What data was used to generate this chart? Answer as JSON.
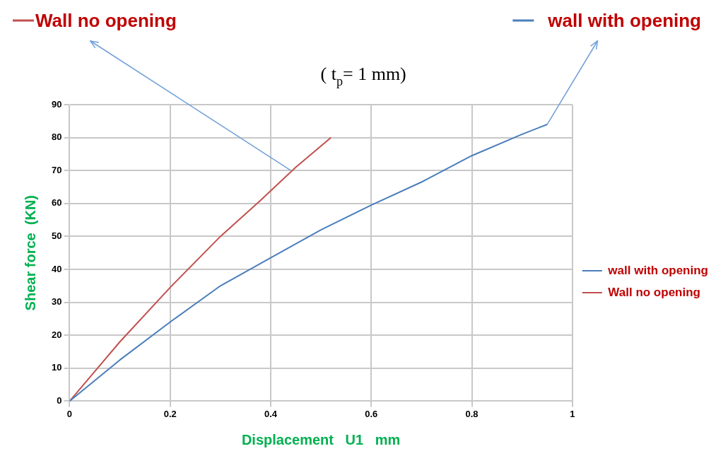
{
  "chart_data": {
    "type": "line",
    "xlabel": "Displacement   U1   mm",
    "ylabel": "Shear force  (KN)",
    "xlim": [
      0,
      1
    ],
    "xticks": [
      0,
      0.2,
      0.4,
      0.6,
      0.8,
      1
    ],
    "ylim": [
      0,
      90
    ],
    "yticks": [
      0,
      10,
      20,
      30,
      40,
      50,
      60,
      70,
      80,
      90
    ],
    "grid": true,
    "legend": "right",
    "marker": "none",
    "line_style": "solid",
    "series": [
      {
        "name": "wall with opening",
        "color": "#4a7ebb",
        "x": [
          0,
          0.1,
          0.2,
          0.3,
          0.4,
          0.5,
          0.6,
          0.7,
          0.8,
          0.9,
          0.95
        ],
        "values": [
          0,
          12.5,
          24,
          35,
          43.5,
          52,
          59.5,
          66.5,
          74.5,
          81,
          84
        ]
      },
      {
        "name": "Wall no opening",
        "color": "#c0504d",
        "x": [
          0,
          0.1,
          0.2,
          0.3,
          0.38,
          0.45,
          0.52
        ],
        "values": [
          0,
          18,
          34.5,
          50,
          61,
          71,
          80
        ]
      }
    ],
    "annotations": [
      {
        "text": "Wall no opening",
        "x": 0.44,
        "y": 70
      },
      {
        "text": "wall with opening",
        "x": 0.95,
        "y": 84
      },
      "( t$_{p}$= 1 mm)"
    ]
  }
}
